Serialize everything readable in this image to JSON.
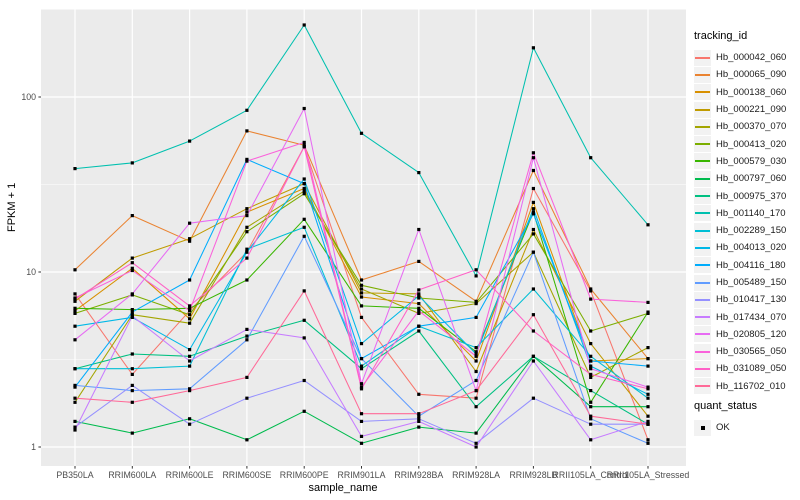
{
  "chart_data": {
    "type": "line",
    "title": "",
    "xlabel": "sample_name",
    "ylabel": "FPKM + 1",
    "y_scale": "log10",
    "y_ticks": [
      1,
      10,
      100
    ],
    "y_minor_breaks": [
      3.162,
      31.62,
      316.2
    ],
    "ylim": [
      0.92,
      330
    ],
    "grid": "on",
    "legend_position": "right",
    "point_shape": "filled-square",
    "point_color": "#000000",
    "categories": [
      "PB350LA",
      "RRIM600LA",
      "RRIM600LE",
      "RRIM600SE",
      "RRIM600PE",
      "RRIM901LA",
      "RRIM928BA",
      "RRIM928LA",
      "RRIM928LB",
      "RRII105LA_Control",
      "RRII105LA_Stressed"
    ],
    "series": [
      {
        "name": "Hb_000042_060",
        "color": "#F8766D",
        "values": [
          7.5,
          2.6,
          6.0,
          13,
          52,
          5.5,
          2.0,
          1.9,
          30,
          7.8,
          1.1
        ]
      },
      {
        "name": "Hb_000065_090",
        "color": "#EA8331",
        "values": [
          10.3,
          21,
          15,
          64,
          53,
          9.0,
          11.5,
          6.8,
          38,
          8.0,
          3.2
        ]
      },
      {
        "name": "Hb_000138_060",
        "color": "#D89000",
        "values": [
          6.0,
          10.5,
          5.4,
          22,
          30,
          7.2,
          6.6,
          3.1,
          25,
          3.1,
          3.2
        ]
      },
      {
        "name": "Hb_000221_090",
        "color": "#C09B00",
        "values": [
          6.8,
          12,
          15.5,
          23,
          32,
          7.6,
          7.5,
          2.7,
          17.5,
          3.9,
          1.5
        ]
      },
      {
        "name": "Hb_000370_070",
        "color": "#A3A500",
        "values": [
          1.8,
          5.7,
          5.1,
          18,
          29,
          8.0,
          5.8,
          6.6,
          13,
          2.5,
          3.7
        ]
      },
      {
        "name": "Hb_000413_020",
        "color": "#7CAE00",
        "values": [
          5.8,
          7.4,
          5.7,
          17,
          28,
          8.4,
          7.1,
          6.7,
          16.5,
          4.6,
          5.8
        ]
      },
      {
        "name": "Hb_000579_030",
        "color": "#39B600",
        "values": [
          6.2,
          6.1,
          6.2,
          9.0,
          20,
          6.4,
          6.2,
          3.5,
          22,
          1.8,
          5.9
        ]
      },
      {
        "name": "Hb_000797_060",
        "color": "#00BB4E",
        "values": [
          1.4,
          1.2,
          1.45,
          1.1,
          1.6,
          1.05,
          1.3,
          1.2,
          3.3,
          1.7,
          1.7
        ]
      },
      {
        "name": "Hb_000975_370",
        "color": "#00C081",
        "values": [
          2.8,
          3.4,
          3.3,
          4.3,
          5.3,
          2.8,
          4.6,
          1.7,
          3.3,
          2.1,
          1.35
        ]
      },
      {
        "name": "Hb_001140_170",
        "color": "#00C0AF",
        "values": [
          39,
          42,
          56,
          84,
          258,
          62,
          37,
          9.5,
          191,
          45,
          18.6
        ]
      },
      {
        "name": "Hb_002289_150",
        "color": "#00BFD5",
        "values": [
          2.8,
          2.8,
          2.9,
          13.5,
          18,
          2.9,
          4.9,
          3.7,
          8.0,
          3.3,
          1.9
        ]
      },
      {
        "name": "Hb_004013_020",
        "color": "#00B8E7",
        "values": [
          4.9,
          5.5,
          3.6,
          13,
          34,
          3.9,
          7.3,
          3.4,
          23,
          2.9,
          2.0
        ]
      },
      {
        "name": "Hb_004116_180",
        "color": "#00ACFC",
        "values": [
          2.2,
          5.9,
          9.0,
          44,
          32,
          3.2,
          4.9,
          5.5,
          21.5,
          3.1,
          2.9
        ]
      },
      {
        "name": "Hb_005489_150",
        "color": "#619CFF",
        "values": [
          2.25,
          2.1,
          2.15,
          4.1,
          16,
          3.2,
          1.5,
          2.4,
          13,
          1.45,
          1.05
        ]
      },
      {
        "name": "Hb_010417_130",
        "color": "#9590FF",
        "values": [
          1.3,
          2.25,
          1.35,
          1.9,
          2.4,
          1.4,
          1.45,
          1.05,
          1.9,
          1.35,
          1.35
        ]
      },
      {
        "name": "Hb_017434_070",
        "color": "#C77CFF",
        "values": [
          1.25,
          5.6,
          3.1,
          4.7,
          4.2,
          1.15,
          1.4,
          1.0,
          3.1,
          1.1,
          1.4
        ]
      },
      {
        "name": "Hb_020805_120",
        "color": "#E76BF3",
        "values": [
          4.1,
          7.5,
          19,
          21,
          86,
          2.3,
          17.5,
          2.1,
          45,
          2.8,
          2.2
        ]
      },
      {
        "name": "Hb_030565_050",
        "color": "#FA62DB",
        "values": [
          7.1,
          10.2,
          6.0,
          43,
          55,
          2.2,
          6.0,
          3.3,
          48,
          7.0,
          6.7
        ]
      },
      {
        "name": "Hb_031089_050",
        "color": "#FF61C7",
        "values": [
          7.0,
          11.3,
          6.4,
          12,
          52,
          2.15,
          7.9,
          10.3,
          4.6,
          2.6,
          2.15
        ]
      },
      {
        "name": "Hb_116702_010",
        "color": "#FF6A98",
        "values": [
          1.9,
          1.8,
          2.1,
          2.5,
          7.8,
          1.55,
          1.55,
          2.1,
          5.7,
          1.5,
          1.35
        ]
      }
    ]
  },
  "legend": {
    "tracking": {
      "title": "tracking_id"
    },
    "quant": {
      "title": "quant_status",
      "items": [
        {
          "label": "OK"
        }
      ]
    }
  },
  "theme": {
    "panel_bg": "#EBEBEB",
    "grid_major": "#FFFFFF",
    "grid_minor": "#FFFFFF",
    "axis_text": "#4D4D4D",
    "tick_mark": "#333333",
    "legend_key_bg": "#F2F2F2"
  }
}
